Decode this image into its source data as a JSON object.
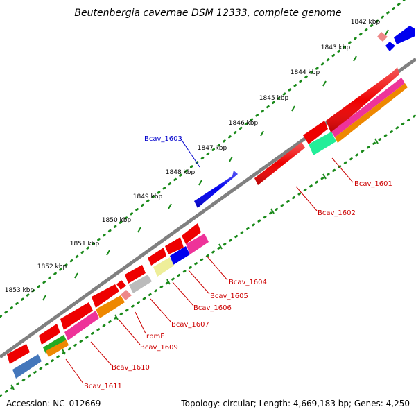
{
  "title": "Beutenbergia cavernae DSM 12333, complete genome",
  "footer": {
    "accession": "Accession: NC_012669",
    "summary": "Topology: circular; Length: 4,669,183 bp; Genes: 4,250"
  },
  "ticks": [
    "1842 kbp",
    "1843 kbp",
    "1844 kbp",
    "1845 kbp",
    "1846 kbp",
    "1847 kbp",
    "1848 kbp",
    "1849 kbp",
    "1850 kbp",
    "1851 kbp",
    "1852 kbp",
    "1853 kbp"
  ],
  "gene_labels": {
    "bcav_1603": "Bcav_1603",
    "bcav_1601": "Bcav_1601",
    "bcav_1602": "Bcav_1602",
    "bcav_1604": "Bcav_1604",
    "bcav_1605": "Bcav_1605",
    "bcav_1606": "Bcav_1606",
    "bcav_1607": "Bcav_1607",
    "rpmf": "rpmF",
    "bcav_1609": "Bcav_1609",
    "bcav_1610": "Bcav_1610",
    "bcav_1611": "Bcav_1611"
  },
  "colors": {
    "backbone": "#808080",
    "forward_label": "#0000cc",
    "reverse_label": "#cc0000",
    "tick_dots": "#1a8a1a"
  }
}
